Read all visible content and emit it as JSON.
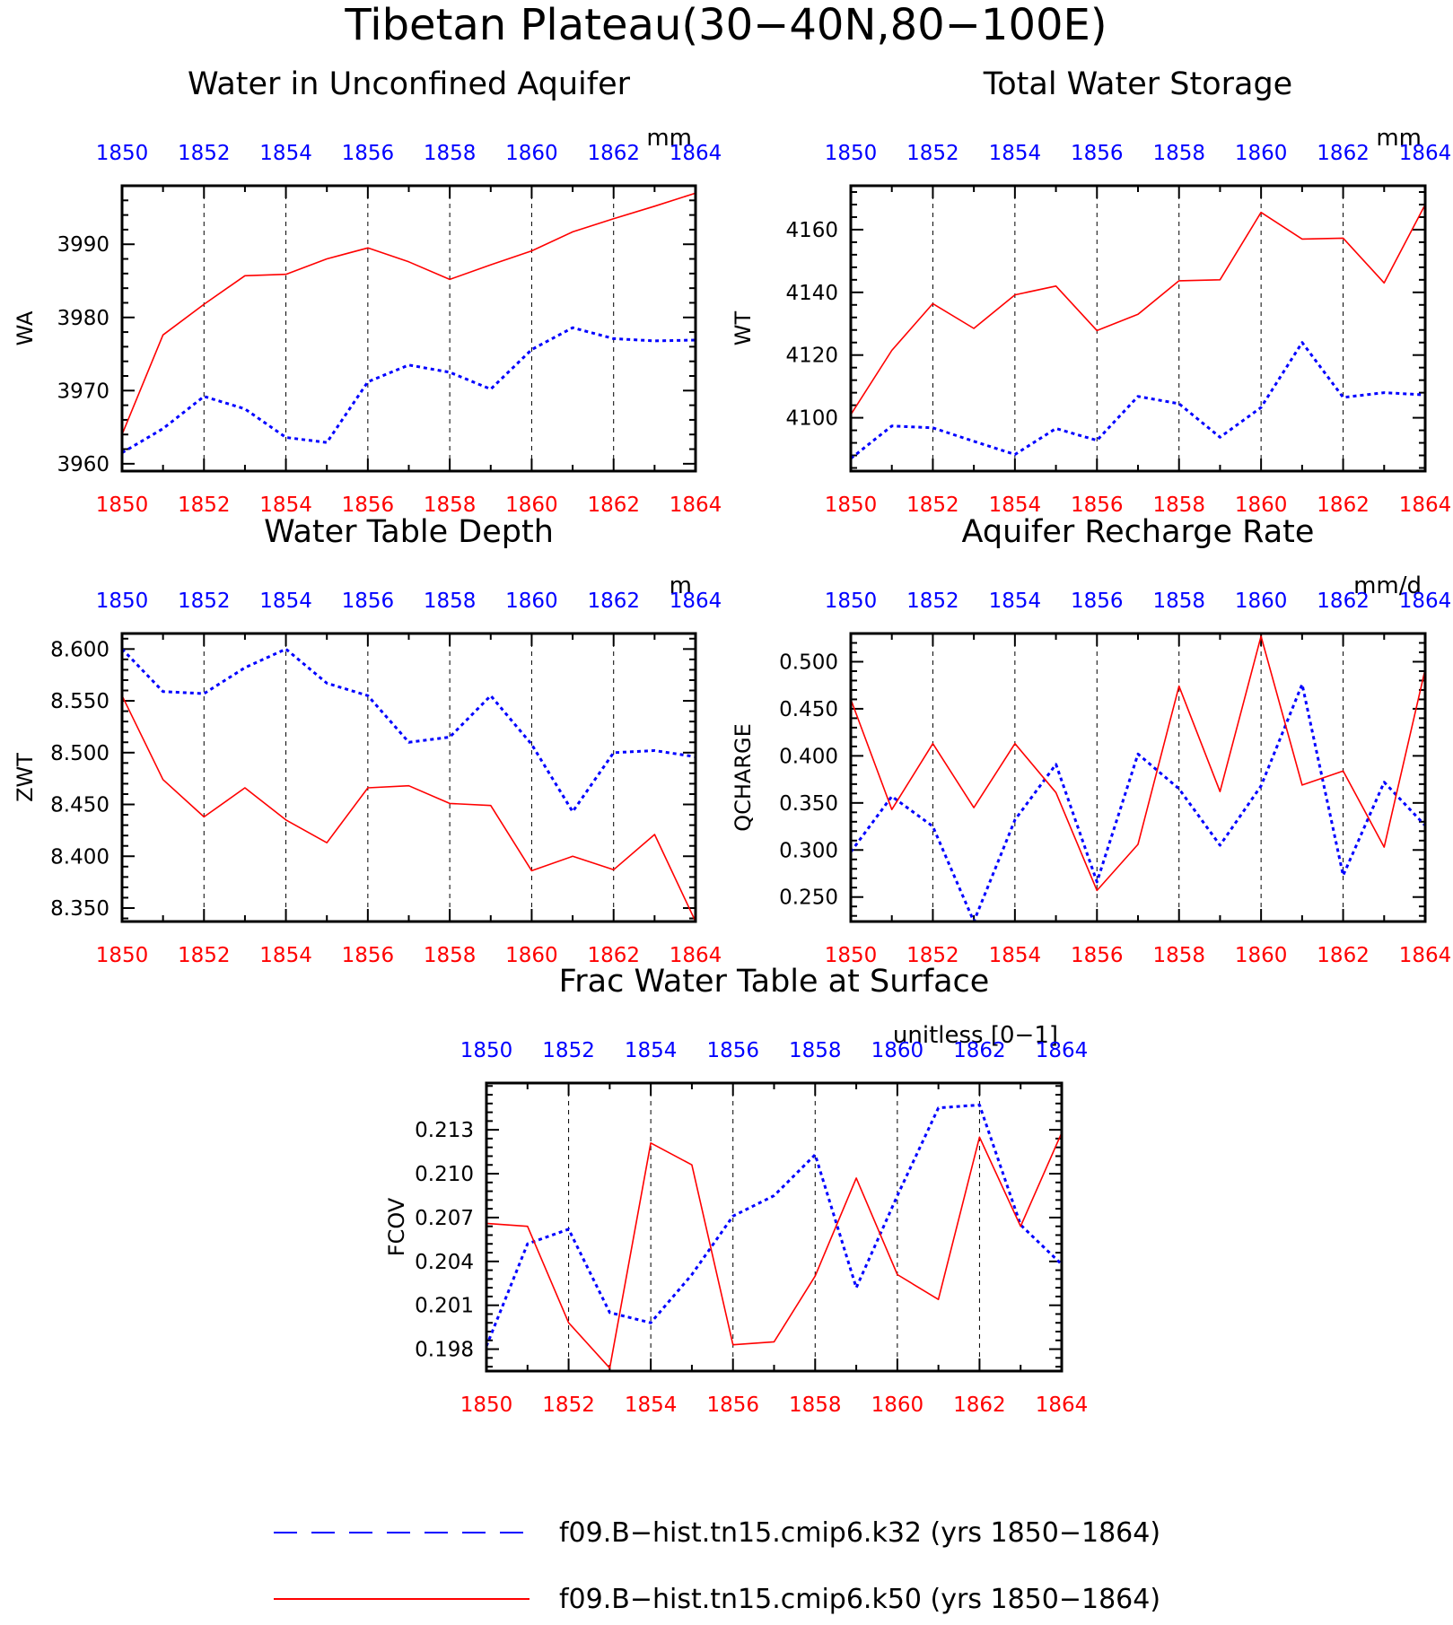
{
  "figure_title": "Tibetan Plateau(30−40N,80−100E)",
  "colors": {
    "series_k32": "#0000ff",
    "series_k50": "#ff0000",
    "axis": "#000000",
    "grid": "#000000"
  },
  "legend": {
    "placement": "bottom",
    "items": [
      {
        "label": "f09.B−hist.tn15.cmip6.k32 (yrs 1850−1864)",
        "color": "#0000ff",
        "style": "dashed"
      },
      {
        "label": "f09.B−hist.tn15.cmip6.k50 (yrs 1850−1864)",
        "color": "#ff0000",
        "style": "solid"
      }
    ]
  },
  "chart_data": [
    {
      "type": "line",
      "title": "Water in Unconfined Aquifer",
      "units": "mm",
      "ylabel": "WA",
      "xlim": [
        1850,
        1864
      ],
      "ylim": [
        3959,
        3998
      ],
      "yticks": [
        "3960",
        "3970",
        "3980",
        "3990"
      ],
      "xticks": [
        "1850",
        "1852",
        "1854",
        "1856",
        "1858",
        "1860",
        "1862",
        "1864"
      ],
      "grid": "vertical dashed at labeled years",
      "x": [
        1850,
        1851,
        1852,
        1853,
        1854,
        1855,
        1856,
        1857,
        1858,
        1859,
        1860,
        1861,
        1862,
        1863,
        1864
      ],
      "series": [
        {
          "values": [
            3961.5,
            3964.8,
            3969.2,
            3967.5,
            3963.6,
            3962.9,
            3971.2,
            3973.5,
            3972.5,
            3970.2,
            3975.6,
            3978.6,
            3977.1,
            3976.8,
            3976.9
          ]
        },
        {
          "values": [
            3964,
            3977.6,
            3981.8,
            3985.7,
            3985.9,
            3988,
            3989.5,
            3987.6,
            3985.2,
            3987.2,
            3989.1,
            3991.7,
            3993.5,
            3995.2,
            3997
          ]
        }
      ]
    },
    {
      "type": "line",
      "title": "Total Water Storage",
      "units": "mm",
      "ylabel": "WT",
      "xlim": [
        1850,
        1864
      ],
      "ylim": [
        4083,
        4174
      ],
      "yticks": [
        "4100",
        "4120",
        "4140",
        "4160"
      ],
      "xticks": [
        "1850",
        "1852",
        "1854",
        "1856",
        "1858",
        "1860",
        "1862",
        "1864"
      ],
      "grid": "vertical dashed at labeled years",
      "x": [
        1850,
        1851,
        1852,
        1853,
        1854,
        1855,
        1856,
        1857,
        1858,
        1859,
        1860,
        1861,
        1862,
        1863,
        1864
      ],
      "series": [
        {
          "values": [
            4087,
            4097.4,
            4096.8,
            4092.5,
            4088.3,
            4096.6,
            4092.8,
            4106.8,
            4104.5,
            4093.8,
            4103.3,
            4124,
            4106.5,
            4108,
            4107.3
          ]
        },
        {
          "values": [
            4101,
            4121.5,
            4136.4,
            4128.5,
            4139.2,
            4142,
            4127.8,
            4133,
            4143.7,
            4144,
            4165.5,
            4157,
            4157.3,
            4143,
            4168
          ]
        }
      ]
    },
    {
      "type": "line",
      "title": "Water Table Depth",
      "units": "m",
      "ylabel": "ZWT",
      "xlim": [
        1850,
        1864
      ],
      "ylim": [
        8.337,
        8.615
      ],
      "yticks": [
        "8.350",
        "8.400",
        "8.450",
        "8.500",
        "8.550",
        "8.600"
      ],
      "xticks": [
        "1850",
        "1852",
        "1854",
        "1856",
        "1858",
        "1860",
        "1862",
        "1864"
      ],
      "grid": "vertical dashed at labeled years",
      "x": [
        1850,
        1851,
        1852,
        1853,
        1854,
        1855,
        1856,
        1857,
        1858,
        1859,
        1860,
        1861,
        1862,
        1863,
        1864
      ],
      "series": [
        {
          "values": [
            8.6,
            8.559,
            8.557,
            8.582,
            8.6,
            8.567,
            8.555,
            8.51,
            8.515,
            8.555,
            8.508,
            8.443,
            8.5,
            8.502,
            8.496
          ]
        },
        {
          "values": [
            8.555,
            8.474,
            8.438,
            8.466,
            8.435,
            8.413,
            8.466,
            8.468,
            8.451,
            8.449,
            8.386,
            8.4,
            8.387,
            8.421,
            8.337
          ]
        }
      ]
    },
    {
      "type": "line",
      "title": "Aquifer Recharge Rate",
      "units": "mm/d",
      "ylabel": "QCHARGE",
      "xlim": [
        1850,
        1864
      ],
      "ylim": [
        0.224,
        0.53
      ],
      "yticks": [
        "0.250",
        "0.300",
        "0.350",
        "0.400",
        "0.450",
        "0.500"
      ],
      "xticks": [
        "1850",
        "1852",
        "1854",
        "1856",
        "1858",
        "1860",
        "1862",
        "1864"
      ],
      "grid": "vertical dashed at labeled years",
      "x": [
        1850,
        1851,
        1852,
        1853,
        1854,
        1855,
        1856,
        1857,
        1858,
        1859,
        1860,
        1861,
        1862,
        1863,
        1864
      ],
      "series": [
        {
          "values": [
            0.298,
            0.357,
            0.325,
            0.224,
            0.332,
            0.391,
            0.266,
            0.402,
            0.365,
            0.305,
            0.368,
            0.476,
            0.273,
            0.372,
            0.326
          ]
        },
        {
          "values": [
            0.46,
            0.343,
            0.413,
            0.345,
            0.413,
            0.361,
            0.257,
            0.306,
            0.474,
            0.362,
            0.527,
            0.369,
            0.384,
            0.303,
            0.492
          ]
        }
      ]
    },
    {
      "type": "line",
      "title": "Frac Water Table at Surface",
      "units": "unitless [0−1]",
      "ylabel": "FCOV",
      "xlim": [
        1850,
        1864
      ],
      "ylim": [
        0.1965,
        0.2162
      ],
      "yticks": [
        "0.198",
        "0.201",
        "0.204",
        "0.207",
        "0.210",
        "0.213"
      ],
      "xticks": [
        "1850",
        "1852",
        "1854",
        "1856",
        "1858",
        "1860",
        "1862",
        "1864"
      ],
      "grid": "vertical dashed at labeled years",
      "x": [
        1850,
        1851,
        1852,
        1853,
        1854,
        1855,
        1856,
        1857,
        1858,
        1859,
        1860,
        1861,
        1862,
        1863,
        1864
      ],
      "series": [
        {
          "values": [
            0.1982,
            0.2052,
            0.2062,
            0.2005,
            0.1998,
            0.2031,
            0.2071,
            0.2085,
            0.2113,
            0.2022,
            0.2085,
            0.2145,
            0.2147,
            0.2065,
            0.2038
          ]
        },
        {
          "values": [
            0.2066,
            0.2064,
            0.1998,
            0.1967,
            0.2121,
            0.2106,
            0.1983,
            0.1985,
            0.203,
            0.2097,
            0.2031,
            0.2014,
            0.2125,
            0.2064,
            0.2128
          ]
        }
      ]
    }
  ]
}
